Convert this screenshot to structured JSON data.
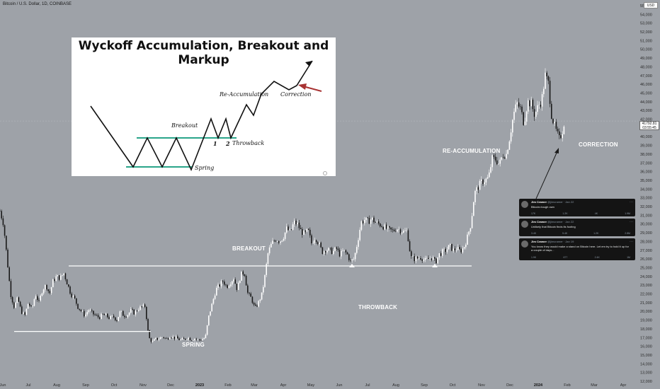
{
  "header": {
    "title": "Bitcoin / U.S. Dollar, 1D, COINBASE",
    "currency": "USD"
  },
  "inset": {
    "title": "Wyckoff Accumulation, Breakout and Markup",
    "labels": {
      "breakout": "Breakout",
      "reaccumulation": "Re-Accumulation",
      "correction": "Correction",
      "throwback": "Throwback",
      "spring": "Spring",
      "num1": "1",
      "num2": "2"
    }
  },
  "annotations": {
    "breakout": "BREAKOUT",
    "throwback": "THROWBACK",
    "spring": "SPRING",
    "reaccumulation": "RE-ACCUMULATION",
    "correction": "CORRECTION"
  },
  "tweets": [
    {
      "name": "Jim Cramer",
      "handle": "@jimcramer · Jan 22",
      "text": "Bitcoin=tough own",
      "stats": [
        "17K",
        "1.2K",
        "4K",
        "1.9M"
      ]
    },
    {
      "name": "Jim Cramer",
      "handle": "@jimcramer · Jan 22",
      "text": "Unlikely that Bitcoin finds its footing",
      "stats": [
        "3.4K",
        "5.4K",
        "1.2K",
        "2.8M"
      ]
    },
    {
      "name": "Jim Cramer",
      "handle": "@jimcramer · Jan 19",
      "text": "You know they would make a stand on Bitcoin here. Let em try to hold it up for a couple of days...",
      "stats": [
        "1.9K",
        "677",
        "2.4K",
        "1M"
      ]
    }
  ],
  "price_tag": {
    "price": "41792.81",
    "countdown": "03:55:45"
  },
  "colors": {
    "background": "#9ea2a8",
    "candle_up": "#ffffff",
    "candle_down": "#1a1a1a",
    "support_line": "#ffffff",
    "inset_range_line": "#2aa58a",
    "inset_arrow": "#a83232"
  },
  "chart_data": {
    "type": "candlestick",
    "title": "Bitcoin / U.S. Dollar, 1D, COINBASE",
    "ylim": [
      12000,
      55000
    ],
    "y_ticks": [
      55000,
      54000,
      53000,
      52000,
      51000,
      50000,
      49000,
      48000,
      47000,
      46000,
      45000,
      44000,
      43000,
      42000,
      41000,
      40000,
      39000,
      38000,
      37000,
      36000,
      35000,
      34000,
      33000,
      32000,
      31000,
      30000,
      29000,
      28000,
      27000,
      26000,
      25000,
      24000,
      23000,
      22000,
      21000,
      20000,
      19000,
      18000,
      17000,
      16000,
      15000,
      14000,
      13000,
      12000
    ],
    "x_ticks": [
      "Jun",
      "Jul",
      "Aug",
      "Sep",
      "Oct",
      "Nov",
      "Dec",
      "2023",
      "Feb",
      "Mar",
      "Apr",
      "May",
      "Jun",
      "Jul",
      "Aug",
      "Sep",
      "Oct",
      "Nov",
      "Dec",
      "2024",
      "Feb",
      "Mar",
      "Apr"
    ],
    "price_path": [
      [
        0,
        31500
      ],
      [
        5,
        30000
      ],
      [
        10,
        26000
      ],
      [
        15,
        22000
      ],
      [
        20,
        20500
      ],
      [
        25,
        21500
      ],
      [
        30,
        20000
      ],
      [
        35,
        19500
      ],
      [
        40,
        21000
      ],
      [
        45,
        20200
      ],
      [
        50,
        22000
      ],
      [
        55,
        21000
      ],
      [
        60,
        22500
      ],
      [
        65,
        23000
      ],
      [
        70,
        22000
      ],
      [
        75,
        23500
      ],
      [
        80,
        24000
      ],
      [
        85,
        23800
      ],
      [
        90,
        24400
      ],
      [
        95,
        23200
      ],
      [
        100,
        22000
      ],
      [
        105,
        21500
      ],
      [
        110,
        20500
      ],
      [
        115,
        20000
      ],
      [
        120,
        19500
      ],
      [
        125,
        20200
      ],
      [
        130,
        19800
      ],
      [
        135,
        19500
      ],
      [
        140,
        19300
      ],
      [
        145,
        19600
      ],
      [
        150,
        19500
      ],
      [
        155,
        19200
      ],
      [
        160,
        19400
      ],
      [
        165,
        19000
      ],
      [
        170,
        20000
      ],
      [
        175,
        19500
      ],
      [
        180,
        19600
      ],
      [
        185,
        20100
      ],
      [
        190,
        19800
      ],
      [
        195,
        20300
      ],
      [
        200,
        20500
      ],
      [
        205,
        20600
      ],
      [
        210,
        17000
      ],
      [
        215,
        16500
      ],
      [
        220,
        16800
      ],
      [
        225,
        16900
      ],
      [
        230,
        17100
      ],
      [
        235,
        16800
      ],
      [
        240,
        17200
      ],
      [
        245,
        17000
      ],
      [
        250,
        16900
      ],
      [
        255,
        16700
      ],
      [
        260,
        16800
      ],
      [
        265,
        17000
      ],
      [
        270,
        16800
      ],
      [
        275,
        16900
      ],
      [
        280,
        16700
      ],
      [
        285,
        16800
      ],
      [
        290,
        17000
      ],
      [
        295,
        19500
      ],
      [
        300,
        21000
      ],
      [
        305,
        22500
      ],
      [
        310,
        23000
      ],
      [
        315,
        23500
      ],
      [
        320,
        22800
      ],
      [
        325,
        23300
      ],
      [
        330,
        23800
      ],
      [
        335,
        22500
      ],
      [
        340,
        24200
      ],
      [
        345,
        24500
      ],
      [
        350,
        22000
      ],
      [
        355,
        21500
      ],
      [
        360,
        20300
      ],
      [
        365,
        21000
      ],
      [
        370,
        22000
      ],
      [
        375,
        24500
      ],
      [
        378,
        26500
      ],
      [
        382,
        27500
      ],
      [
        386,
        28000
      ],
      [
        390,
        28300
      ],
      [
        395,
        28000
      ],
      [
        400,
        28500
      ],
      [
        405,
        29500
      ],
      [
        410,
        29000
      ],
      [
        415,
        30200
      ],
      [
        420,
        30000
      ],
      [
        425,
        29200
      ],
      [
        430,
        28800
      ],
      [
        435,
        29300
      ],
      [
        440,
        27800
      ],
      [
        445,
        28500
      ],
      [
        450,
        27800
      ],
      [
        455,
        26800
      ],
      [
        460,
        27100
      ],
      [
        465,
        27000
      ],
      [
        470,
        26800
      ],
      [
        475,
        27200
      ],
      [
        480,
        26500
      ],
      [
        485,
        26900
      ],
      [
        490,
        26600
      ],
      [
        495,
        25700
      ],
      [
        500,
        26000
      ],
      [
        505,
        28000
      ],
      [
        510,
        30200
      ],
      [
        515,
        30500
      ],
      [
        520,
        30300
      ],
      [
        525,
        30600
      ],
      [
        530,
        30200
      ],
      [
        535,
        30000
      ],
      [
        540,
        29800
      ],
      [
        545,
        29500
      ],
      [
        550,
        29300
      ],
      [
        555,
        29200
      ],
      [
        560,
        29500
      ],
      [
        565,
        29300
      ],
      [
        570,
        29100
      ],
      [
        575,
        29200
      ],
      [
        580,
        26200
      ],
      [
        585,
        26000
      ],
      [
        590,
        26100
      ],
      [
        595,
        26200
      ],
      [
        600,
        25800
      ],
      [
        605,
        26000
      ],
      [
        610,
        26200
      ],
      [
        615,
        25600
      ],
      [
        620,
        26500
      ],
      [
        625,
        26800
      ],
      [
        630,
        27000
      ],
      [
        635,
        27500
      ],
      [
        640,
        27000
      ],
      [
        645,
        27200
      ],
      [
        650,
        26900
      ],
      [
        655,
        27300
      ],
      [
        660,
        28500
      ],
      [
        665,
        30000
      ],
      [
        670,
        33500
      ],
      [
        675,
        34200
      ],
      [
        680,
        34800
      ],
      [
        685,
        35000
      ],
      [
        690,
        35300
      ],
      [
        695,
        37500
      ],
      [
        700,
        37400
      ],
      [
        705,
        36800
      ],
      [
        710,
        37900
      ],
      [
        715,
        38000
      ],
      [
        720,
        40000
      ],
      [
        725,
        42500
      ],
      [
        730,
        43800
      ],
      [
        735,
        43200
      ],
      [
        740,
        41500
      ],
      [
        745,
        44000
      ],
      [
        750,
        43800
      ],
      [
        755,
        42500
      ],
      [
        760,
        43500
      ],
      [
        765,
        44200
      ],
      [
        770,
        47000
      ],
      [
        775,
        46000
      ],
      [
        778,
        42800
      ],
      [
        782,
        41500
      ],
      [
        786,
        40500
      ],
      [
        790,
        39700
      ],
      [
        794,
        40600
      ],
      [
        797,
        41800
      ]
    ],
    "support_levels": [
      {
        "name": "range_low",
        "y": 17700,
        "x_start": 20,
        "x_end": 213
      },
      {
        "name": "breakout_level",
        "y": 25200,
        "x_start": 97,
        "x_end": 666
      }
    ]
  }
}
